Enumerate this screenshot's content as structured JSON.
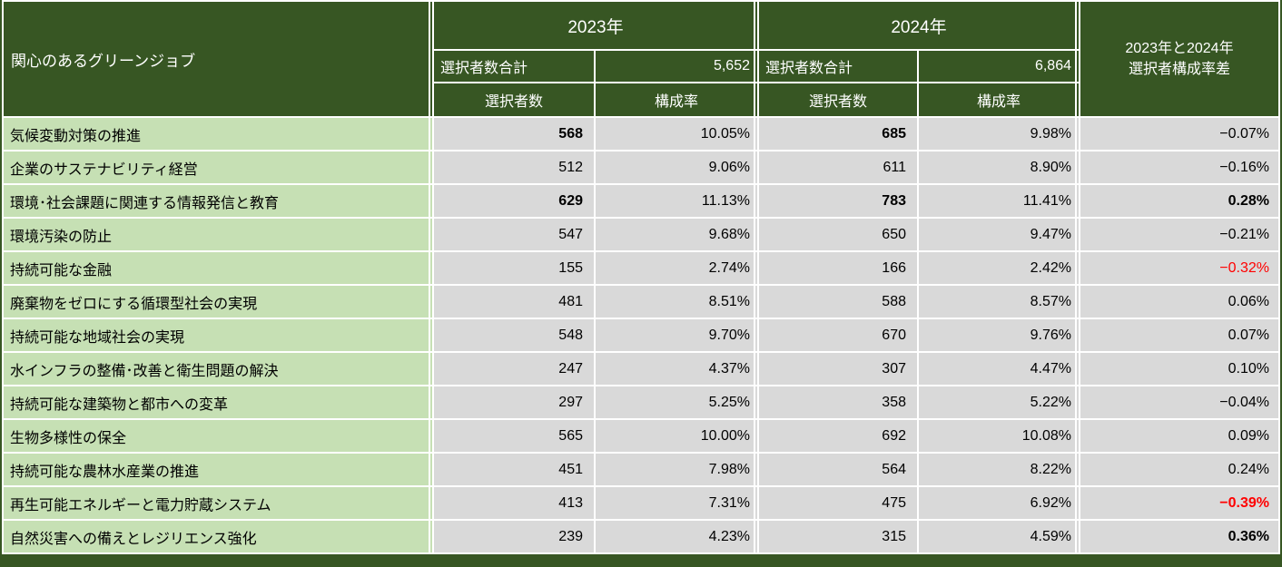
{
  "header": {
    "title": "関心のあるグリーンジョブ",
    "groups": [
      {
        "year": "2023年",
        "total_label": "選択者数合計",
        "total_value": "5,652",
        "count_label": "選択者数",
        "pct_label": "構成率"
      },
      {
        "year": "2024年",
        "total_label": "選択者数合計",
        "total_value": "6,864",
        "count_label": "選択者数",
        "pct_label": "構成率"
      }
    ],
    "diff_line1": "2023年と2024年",
    "diff_line2": "選択者構成率差"
  },
  "rows": [
    {
      "label": "気候変動対策の推進",
      "count_2023": "568",
      "pct_2023": "10.05%",
      "count_2024": "685",
      "pct_2024": "9.98%",
      "diff": "−0.07%",
      "count_bold": true,
      "diff_bold": false,
      "diff_red": false
    },
    {
      "label": "企業のサステナビリティ経営",
      "count_2023": "512",
      "pct_2023": "9.06%",
      "count_2024": "611",
      "pct_2024": "8.90%",
      "diff": "−0.16%",
      "count_bold": false,
      "diff_bold": false,
      "diff_red": false
    },
    {
      "label": "環境･社会課題に関連する情報発信と教育",
      "count_2023": "629",
      "pct_2023": "11.13%",
      "count_2024": "783",
      "pct_2024": "11.41%",
      "diff": "0.28%",
      "count_bold": true,
      "diff_bold": true,
      "diff_red": false
    },
    {
      "label": "環境汚染の防止",
      "count_2023": "547",
      "pct_2023": "9.68%",
      "count_2024": "650",
      "pct_2024": "9.47%",
      "diff": "−0.21%",
      "count_bold": false,
      "diff_bold": false,
      "diff_red": false
    },
    {
      "label": "持続可能な金融",
      "count_2023": "155",
      "pct_2023": "2.74%",
      "count_2024": "166",
      "pct_2024": "2.42%",
      "diff": "−0.32%",
      "count_bold": false,
      "diff_bold": false,
      "diff_red": true
    },
    {
      "label": "廃棄物をゼロにする循環型社会の実現",
      "count_2023": "481",
      "pct_2023": "8.51%",
      "count_2024": "588",
      "pct_2024": "8.57%",
      "diff": "0.06%",
      "count_bold": false,
      "diff_bold": false,
      "diff_red": false
    },
    {
      "label": "持続可能な地域社会の実現",
      "count_2023": "548",
      "pct_2023": "9.70%",
      "count_2024": "670",
      "pct_2024": "9.76%",
      "diff": "0.07%",
      "count_bold": false,
      "diff_bold": false,
      "diff_red": false
    },
    {
      "label": "水インフラの整備･改善と衛生問題の解決",
      "count_2023": "247",
      "pct_2023": "4.37%",
      "count_2024": "307",
      "pct_2024": "4.47%",
      "diff": "0.10%",
      "count_bold": false,
      "diff_bold": false,
      "diff_red": false
    },
    {
      "label": "持続可能な建築物と都市への変革",
      "count_2023": "297",
      "pct_2023": "5.25%",
      "count_2024": "358",
      "pct_2024": "5.22%",
      "diff": "−0.04%",
      "count_bold": false,
      "diff_bold": false,
      "diff_red": false
    },
    {
      "label": "生物多様性の保全",
      "count_2023": "565",
      "pct_2023": "10.00%",
      "count_2024": "692",
      "pct_2024": "10.08%",
      "diff": "0.09%",
      "count_bold": false,
      "diff_bold": false,
      "diff_red": false
    },
    {
      "label": "持続可能な農林水産業の推進",
      "count_2023": "451",
      "pct_2023": "7.98%",
      "count_2024": "564",
      "pct_2024": "8.22%",
      "diff": "0.24%",
      "count_bold": false,
      "diff_bold": false,
      "diff_red": false
    },
    {
      "label": "再生可能エネルギーと電力貯蔵システム",
      "count_2023": "413",
      "pct_2023": "7.31%",
      "count_2024": "475",
      "pct_2024": "6.92%",
      "diff": "−0.39%",
      "count_bold": false,
      "diff_bold": true,
      "diff_red": true
    },
    {
      "label": "自然災害への備えとレジリエンス強化",
      "count_2023": "239",
      "pct_2023": "4.23%",
      "count_2024": "315",
      "pct_2024": "4.59%",
      "diff": "0.36%",
      "count_bold": false,
      "diff_bold": true,
      "diff_red": false
    }
  ],
  "colors": {
    "header_bg": "#375623",
    "label_bg": "#C6E0B4",
    "cell_bg": "#D9D9D9",
    "gridline": "#FFFFFF",
    "text_header": "#FFFFFF",
    "text_body": "#000000",
    "negative_highlight": "#FF0000"
  },
  "chart_data": {
    "type": "table",
    "title": "関心のあるグリーンジョブ",
    "columns": [
      "関心のあるグリーンジョブ",
      "2023年 選択者数",
      "2023年 構成率(%)",
      "2024年 選択者数",
      "2024年 構成率(%)",
      "2023年と2024年 選択者構成率差(%)"
    ],
    "totals": {
      "2023年 選択者数合計": 5652,
      "2024年 選択者数合計": 6864
    },
    "rows": [
      [
        "気候変動対策の推進",
        568,
        10.05,
        685,
        9.98,
        -0.07
      ],
      [
        "企業のサステナビリティ経営",
        512,
        9.06,
        611,
        8.9,
        -0.16
      ],
      [
        "環境･社会課題に関連する情報発信と教育",
        629,
        11.13,
        783,
        11.41,
        0.28
      ],
      [
        "環境汚染の防止",
        547,
        9.68,
        650,
        9.47,
        -0.21
      ],
      [
        "持続可能な金融",
        155,
        2.74,
        166,
        2.42,
        -0.32
      ],
      [
        "廃棄物をゼロにする循環型社会の実現",
        481,
        8.51,
        588,
        8.57,
        0.06
      ],
      [
        "持続可能な地域社会の実現",
        548,
        9.7,
        670,
        9.76,
        0.07
      ],
      [
        "水インフラの整備･改善と衛生問題の解決",
        247,
        4.37,
        307,
        4.47,
        0.1
      ],
      [
        "持続可能な建築物と都市への変革",
        297,
        5.25,
        358,
        5.22,
        -0.04
      ],
      [
        "生物多様性の保全",
        565,
        10.0,
        692,
        10.08,
        0.09
      ],
      [
        "持続可能な農林水産業の推進",
        451,
        7.98,
        564,
        8.22,
        0.24
      ],
      [
        "再生可能エネルギーと電力貯蔵システム",
        413,
        7.31,
        475,
        6.92,
        -0.39
      ],
      [
        "自然災害への備えとレジリエンス強化",
        239,
        4.23,
        315,
        4.59,
        0.36
      ]
    ]
  }
}
